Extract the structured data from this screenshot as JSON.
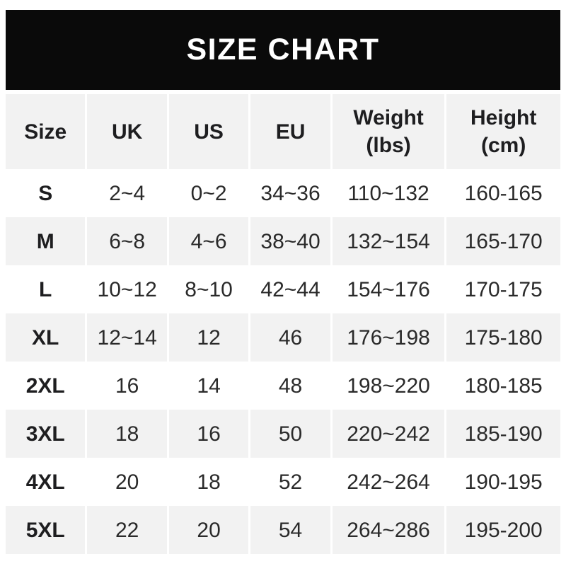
{
  "banner": {
    "title": "SIZE CHART"
  },
  "colors": {
    "page_bg": "#ffffff",
    "banner_bg": "#0a0a0a",
    "banner_text": "#ffffff",
    "row_alt_bg": "#f2f2f2",
    "header_text": "#1e1e20",
    "text_color": "#2a2a2a"
  },
  "table": {
    "columns": [
      {
        "label": "Size"
      },
      {
        "label": "UK"
      },
      {
        "label": "US"
      },
      {
        "label": "EU"
      },
      {
        "label": "Weight",
        "sublabel": "(lbs)"
      },
      {
        "label": "Height",
        "sublabel": "(cm)"
      }
    ],
    "rows": [
      {
        "size": "S",
        "uk": "2~4",
        "us": "0~2",
        "eu": "34~36",
        "weight": "110~132",
        "height": "160-165"
      },
      {
        "size": "M",
        "uk": "6~8",
        "us": "4~6",
        "eu": "38~40",
        "weight": "132~154",
        "height": "165-170"
      },
      {
        "size": "L",
        "uk": "10~12",
        "us": "8~10",
        "eu": "42~44",
        "weight": "154~176",
        "height": "170-175"
      },
      {
        "size": "XL",
        "uk": "12~14",
        "us": "12",
        "eu": "46",
        "weight": "176~198",
        "height": "175-180"
      },
      {
        "size": "2XL",
        "uk": "16",
        "us": "14",
        "eu": "48",
        "weight": "198~220",
        "height": "180-185"
      },
      {
        "size": "3XL",
        "uk": "18",
        "us": "16",
        "eu": "50",
        "weight": "220~242",
        "height": "185-190"
      },
      {
        "size": "4XL",
        "uk": "20",
        "us": "18",
        "eu": "52",
        "weight": "242~264",
        "height": "190-195"
      },
      {
        "size": "5XL",
        "uk": "22",
        "us": "20",
        "eu": "54",
        "weight": "264~286",
        "height": "195-200"
      }
    ]
  },
  "chart_data": {
    "type": "table",
    "title": "SIZE CHART",
    "columns": [
      "Size",
      "UK",
      "US",
      "EU",
      "Weight (lbs)",
      "Height (cm)"
    ],
    "rows": [
      [
        "S",
        "2~4",
        "0~2",
        "34~36",
        "110~132",
        "160-165"
      ],
      [
        "M",
        "6~8",
        "4~6",
        "38~40",
        "132~154",
        "165-170"
      ],
      [
        "L",
        "10~12",
        "8~10",
        "42~44",
        "154~176",
        "170-175"
      ],
      [
        "XL",
        "12~14",
        "12",
        "46",
        "176~198",
        "175-180"
      ],
      [
        "2XL",
        "16",
        "14",
        "48",
        "198~220",
        "180-185"
      ],
      [
        "3XL",
        "18",
        "16",
        "50",
        "220~242",
        "185-190"
      ],
      [
        "4XL",
        "20",
        "18",
        "52",
        "242~264",
        "190-195"
      ],
      [
        "5XL",
        "22",
        "20",
        "54",
        "264~286",
        "195-200"
      ]
    ]
  }
}
